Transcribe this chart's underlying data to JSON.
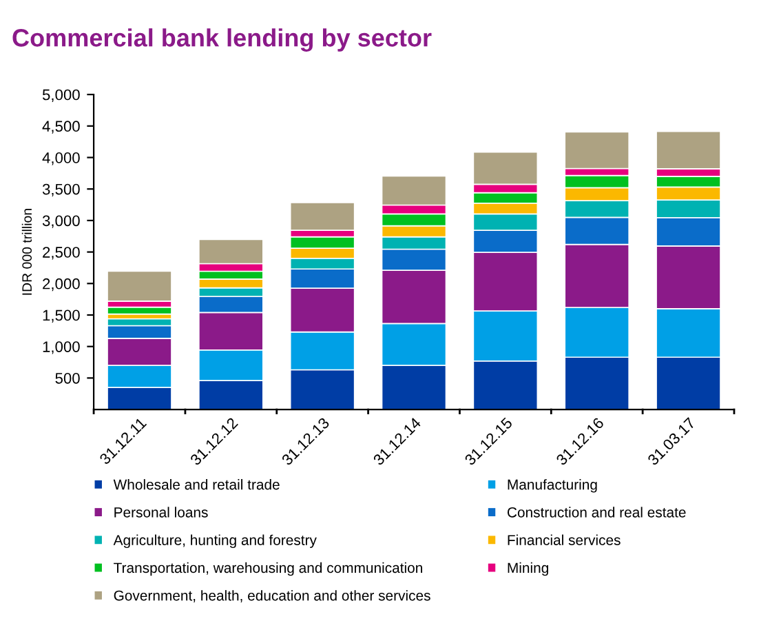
{
  "chart_data": {
    "type": "bar",
    "stacked": true,
    "title": "Commercial bank lending by sector",
    "ylabel": "IDR 000 trillion",
    "categories": [
      "31.12.11",
      "31.12.12",
      "31.12.13",
      "31.12.14",
      "31.12.15",
      "31.12.16",
      "31.03.17"
    ],
    "series": [
      {
        "name": "Wholesale and retail trade",
        "color": "#003da5",
        "values": [
          350,
          460,
          630,
          700,
          770,
          830,
          830
        ]
      },
      {
        "name": "Manufacturing",
        "color": "#00a0e6",
        "values": [
          350,
          485,
          600,
          665,
          795,
          790,
          770
        ]
      },
      {
        "name": "Personal loans",
        "color": "#8b1a89",
        "values": [
          430,
          595,
          695,
          845,
          930,
          1000,
          995
        ]
      },
      {
        "name": "Construction and real estate",
        "color": "#0a6cc9",
        "values": [
          200,
          255,
          305,
          335,
          350,
          430,
          450
        ]
      },
      {
        "name": "Agriculture, hunting and forestry",
        "color": "#00b2b2",
        "values": [
          110,
          135,
          170,
          195,
          260,
          265,
          280
        ]
      },
      {
        "name": "Financial services",
        "color": "#fbb800",
        "values": [
          75,
          140,
          160,
          175,
          170,
          205,
          205
        ]
      },
      {
        "name": "Transportation, warehousing and communication",
        "color": "#00c020",
        "values": [
          110,
          125,
          180,
          190,
          165,
          195,
          170
        ]
      },
      {
        "name": "Mining",
        "color": "#e6007e",
        "values": [
          95,
          120,
          105,
          140,
          135,
          110,
          120
        ]
      },
      {
        "name": "Government, health, education and other services",
        "color": "#ada282",
        "values": [
          475,
          385,
          440,
          460,
          510,
          580,
          595
        ]
      }
    ],
    "ylim": [
      0,
      5000
    ],
    "yticks": [
      500,
      {
        "value": 1000,
        "label": "1,000"
      },
      {
        "value": 1500,
        "label": "1,500"
      },
      {
        "value": 2000,
        "label": "2,000"
      },
      {
        "value": 2500,
        "label": "2,500"
      },
      {
        "value": 3000,
        "label": "3,000"
      },
      {
        "value": 3500,
        "label": "3,500"
      },
      {
        "value": 4000,
        "label": "4,000"
      },
      {
        "value": 4500,
        "label": "4,500"
      },
      {
        "value": 5000,
        "label": "5,000"
      }
    ],
    "grid": false,
    "legend": "bottom"
  }
}
